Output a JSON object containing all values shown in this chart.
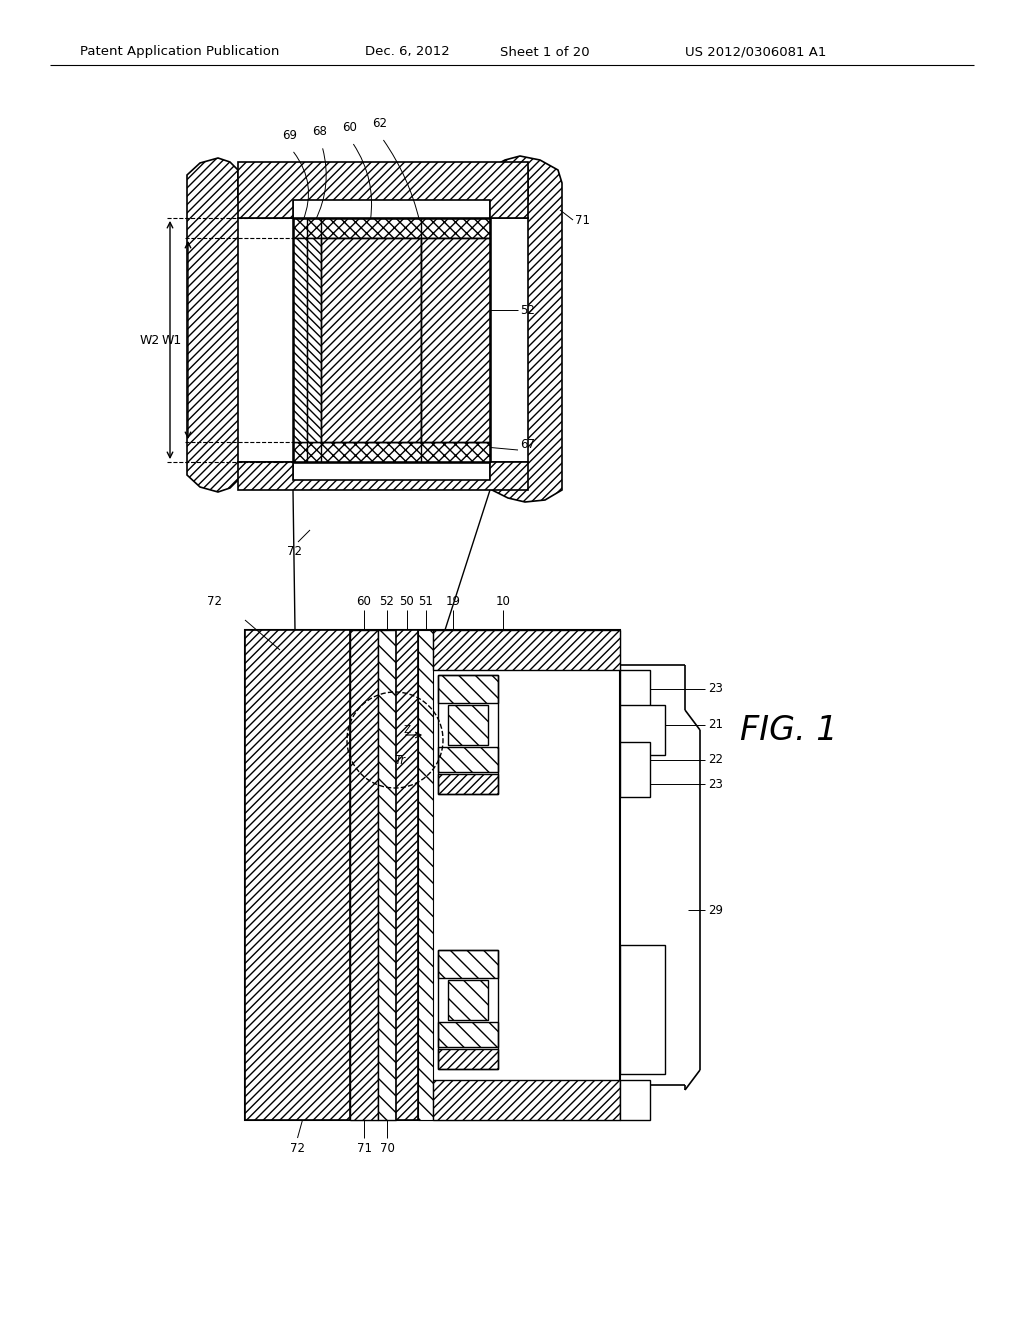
{
  "bg_color": "#ffffff",
  "header_text": "Patent Application Publication",
  "header_date": "Dec. 6, 2012",
  "header_sheet": "Sheet 1 of 20",
  "header_patent": "US 2012/0306081 A1"
}
